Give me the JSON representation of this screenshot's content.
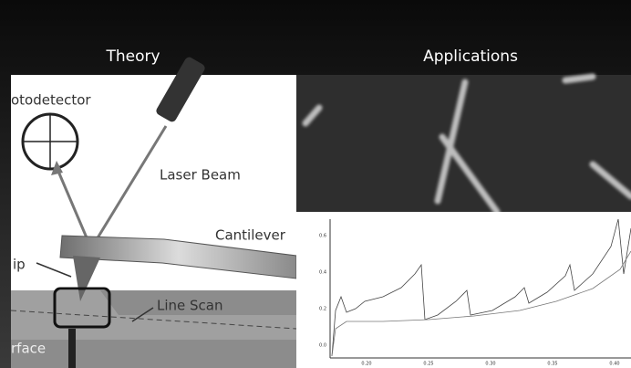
{
  "header": {
    "tabs": [
      "Theory",
      "Applications"
    ]
  },
  "diagram": {
    "labels": [
      "otodetector",
      "Laser Beam",
      "Cantilever",
      "ip",
      "Line Scan",
      "rface"
    ]
  },
  "plot": {
    "yticks": [
      "0.6",
      "0.4",
      "0.2",
      "0.0"
    ],
    "xticks": [
      "0.20",
      "0.25",
      "0.30",
      "0.35",
      "0.40"
    ]
  }
}
